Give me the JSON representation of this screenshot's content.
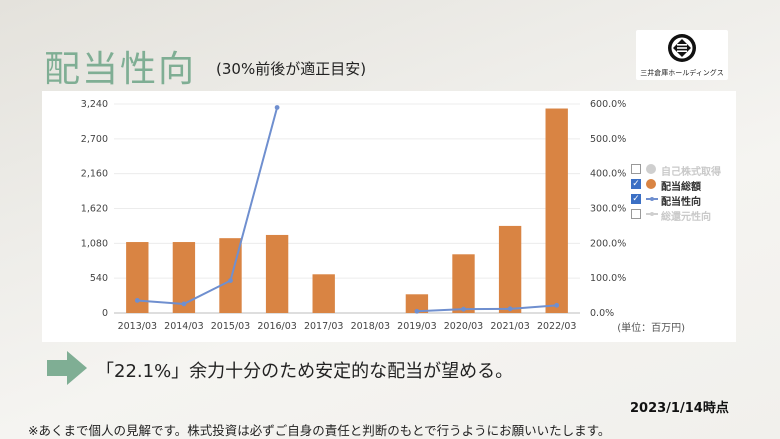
{
  "page": {
    "title": "配当性向",
    "subtitle": "(30%前後が適正目安)",
    "logo_text": "三井倉庫ホールディングス",
    "callout": "「22.1%」余力十分のため安定的な配当が望める。",
    "date": "2023/1/14時点",
    "disclaimer": "※あくまで個人の見解です。株式投資は必ずご自身の責任と判断のもとで行うようにお願いいたします。"
  },
  "colors": {
    "title": "#7fae94",
    "bar": "#d98443",
    "line": "#6f8fcf",
    "checkbox": "#3b6fc4",
    "arrow": "#7fae94"
  },
  "chart_data": {
    "type": "bar",
    "categories": [
      "2013/03",
      "2014/03",
      "2015/03",
      "2016/03",
      "2017/03",
      "2018/03",
      "2019/03",
      "2020/03",
      "2021/03",
      "2022/03"
    ],
    "y_left_ticks": [
      "0",
      "540",
      "1,080",
      "1,620",
      "2,160",
      "2,700",
      "3,240"
    ],
    "y_right_ticks": [
      "0.0%",
      "100.0%",
      "200.0%",
      "300.0%",
      "400.0%",
      "500.0%",
      "600.0%"
    ],
    "ylim_left": [
      0,
      3240
    ],
    "ylim_right": [
      0,
      600
    ],
    "unit_label": "(単位：百万円)",
    "series": [
      {
        "name": "配当総額",
        "kind": "bar",
        "axis": "left",
        "values": [
          1100,
          1100,
          1160,
          1210,
          600,
          null,
          290,
          910,
          1350,
          3170
        ]
      },
      {
        "name": "配当性向",
        "kind": "line",
        "axis": "right",
        "values": [
          36,
          26,
          93,
          590,
          null,
          null,
          5,
          11,
          12,
          22
        ]
      }
    ],
    "legend": [
      {
        "label": "自己株式取得",
        "checked": false,
        "marker": "circle",
        "color": "#cfcfcf",
        "dim": true
      },
      {
        "label": "配当総額",
        "checked": true,
        "marker": "circle",
        "color": "#d98443",
        "dim": false
      },
      {
        "label": "配当性向",
        "checked": true,
        "marker": "line",
        "color": "#6f8fcf",
        "dim": false
      },
      {
        "label": "総還元性向",
        "checked": false,
        "marker": "line",
        "color": "#cfcfcf",
        "dim": true
      }
    ],
    "legend_position": "right"
  }
}
